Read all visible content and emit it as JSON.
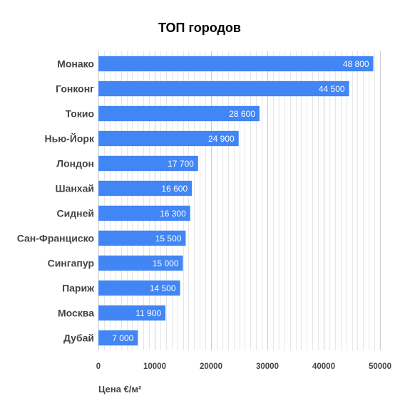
{
  "chart_data": {
    "type": "bar",
    "orientation": "horizontal",
    "title": "ТОП городов",
    "xlabel": "Цена €/м²",
    "ylabel": "",
    "categories": [
      "Монако",
      "Гонконг",
      "Токио",
      "Нью-Йорк",
      "Лондон",
      "Шанхай",
      "Сидней",
      "Сан-Франциско",
      "Сингапур",
      "Париж",
      "Москва",
      "Дубай"
    ],
    "values": [
      48800,
      44500,
      28600,
      24900,
      17700,
      16600,
      16300,
      15500,
      15000,
      14500,
      11900,
      7000
    ],
    "data_labels": [
      "48 800",
      "44 500",
      "28 600",
      "24 900",
      "17 700",
      "16 600",
      "16 300",
      "15 500",
      "15 000",
      "14 500",
      "11 900",
      "7 000"
    ],
    "xlim": [
      0,
      50000
    ],
    "x_ticks": [
      0,
      10000,
      20000,
      30000,
      40000,
      50000
    ],
    "x_tick_labels": [
      "0",
      "10000",
      "20000",
      "30000",
      "40000",
      "50000"
    ],
    "grid": true,
    "minor_grid": true,
    "legend": "none",
    "bar_color": "#4285f4",
    "grid_color": "#cccccc",
    "minor_grid_color": "#e6e6e6"
  }
}
